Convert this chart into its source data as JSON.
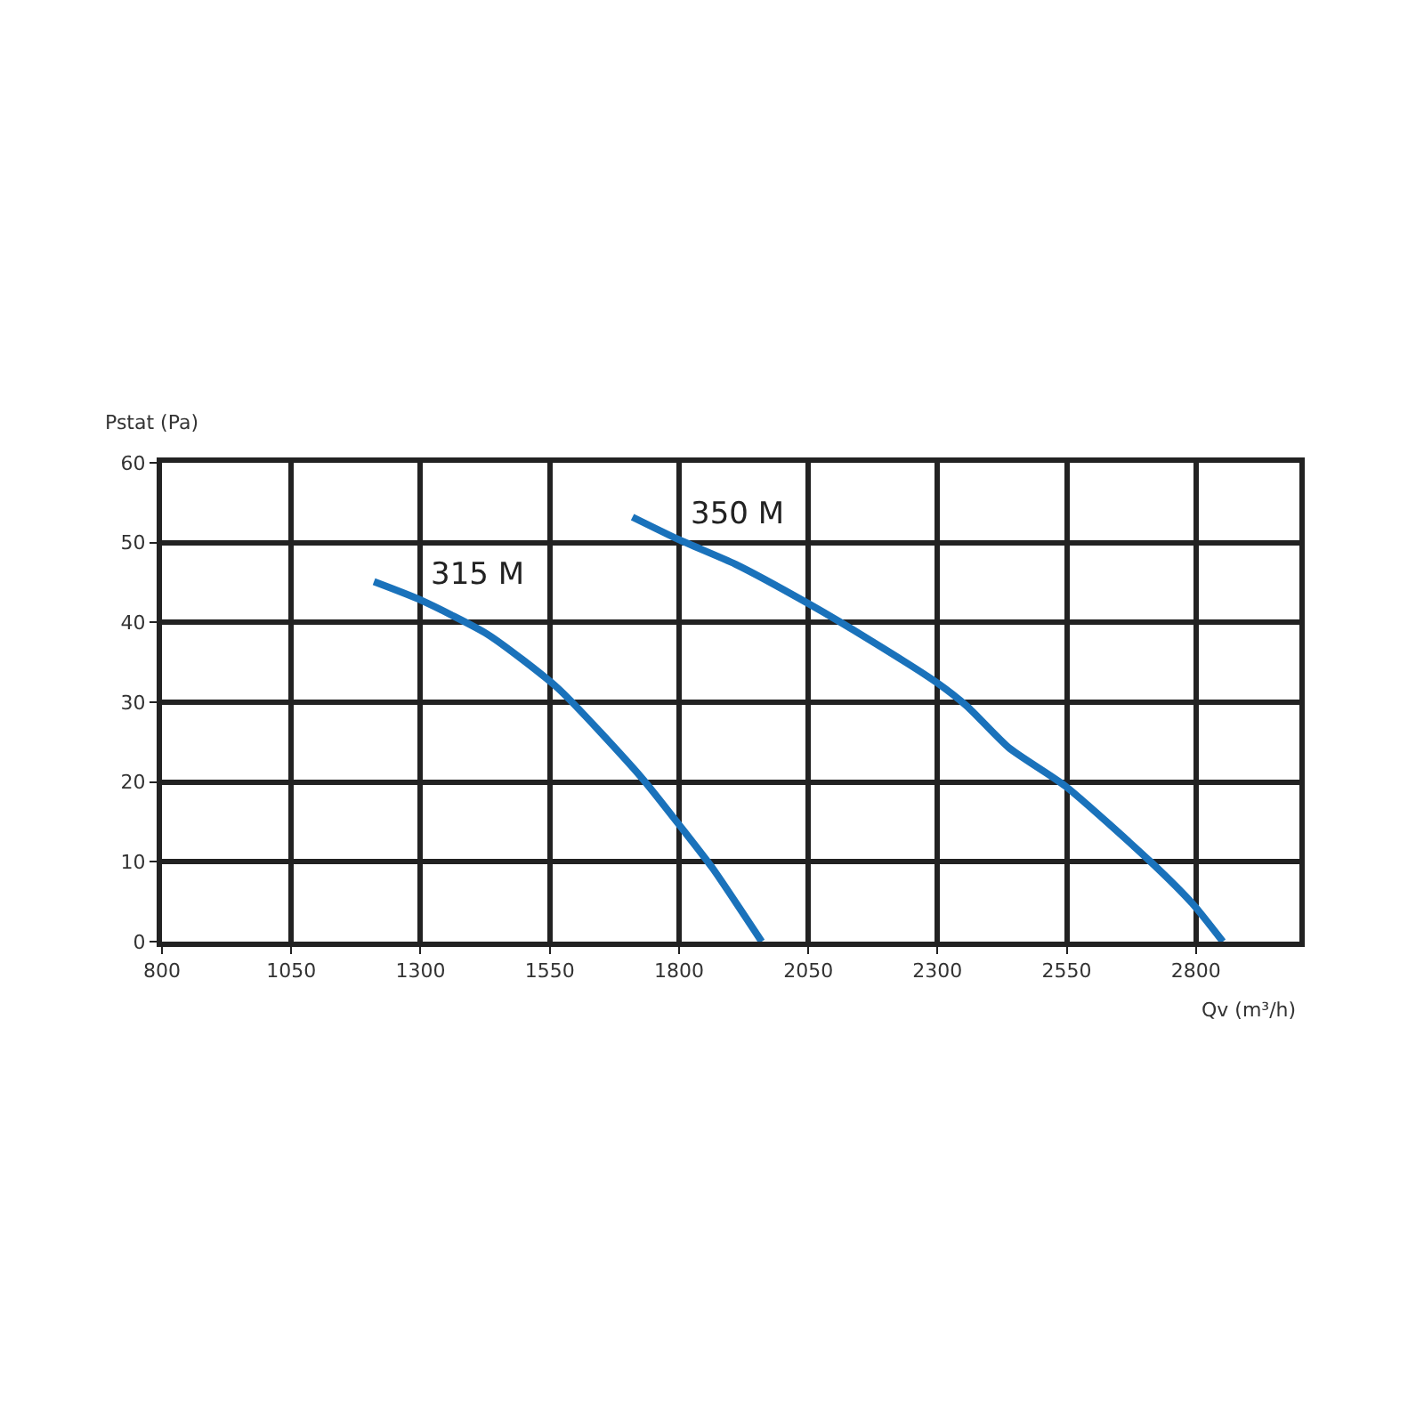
{
  "chart_data": {
    "type": "line",
    "xlabel": "Qv (m³/h)",
    "ylabel": "Pstat (Pa)",
    "xlim": [
      800,
      3000
    ],
    "xticks": [
      800,
      1050,
      1300,
      1550,
      1800,
      2050,
      2300,
      2550,
      2800
    ],
    "ylim": [
      0,
      60
    ],
    "yticks": [
      0,
      10,
      20,
      30,
      40,
      50,
      60
    ],
    "grid": true,
    "legend": false,
    "marker": "none",
    "line_style": "solid",
    "series": [
      {
        "name": "315 M",
        "color": "#1a72bb",
        "x": [
          1210,
          1300,
          1430,
          1565,
          1727,
          1808,
          1865,
          1960
        ],
        "values": [
          45.1,
          42.8,
          38.5,
          31.8,
          20.6,
          14.0,
          9.2,
          0
        ]
      },
      {
        "name": "350 M",
        "color": "#1a72bb",
        "x": [
          1710,
          1802,
          1909,
          2049,
          2174,
          2300,
          2357,
          2438,
          2547,
          2714,
          2794,
          2852
        ],
        "values": [
          53.2,
          50.3,
          47.3,
          42.4,
          37.6,
          32.4,
          29.5,
          24.3,
          19.5,
          9.9,
          4.7,
          0
        ]
      }
    ]
  }
}
